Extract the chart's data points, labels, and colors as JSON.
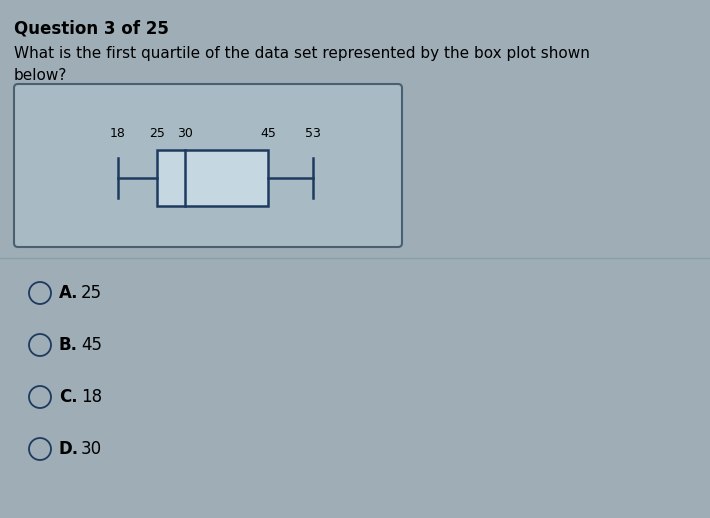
{
  "title": "Question 3 of 25",
  "question_line1": "What is the first quartile of the data set represented by the box plot shown",
  "question_line2": "below?",
  "boxplot": {
    "min": 18,
    "q1": 25,
    "median": 30,
    "q3": 45,
    "max": 53
  },
  "choices": [
    {
      "label": "A.",
      "text": "25"
    },
    {
      "label": "B.",
      "text": "45"
    },
    {
      "label": "C.",
      "text": "18"
    },
    {
      "label": "D.",
      "text": "30"
    }
  ],
  "bg_color": "#9eadb6",
  "panel_bg": "#a8bbc4",
  "panel_border": "#4a6070",
  "boxplot_color": "#1e3a5f",
  "box_fill": "#c5d8e2",
  "divider_color": "#8a9ea8",
  "title_fontsize": 12,
  "question_fontsize": 11,
  "choice_fontsize": 12,
  "bp_label_fontsize": 9,
  "xmin": 10,
  "xmax": 62
}
